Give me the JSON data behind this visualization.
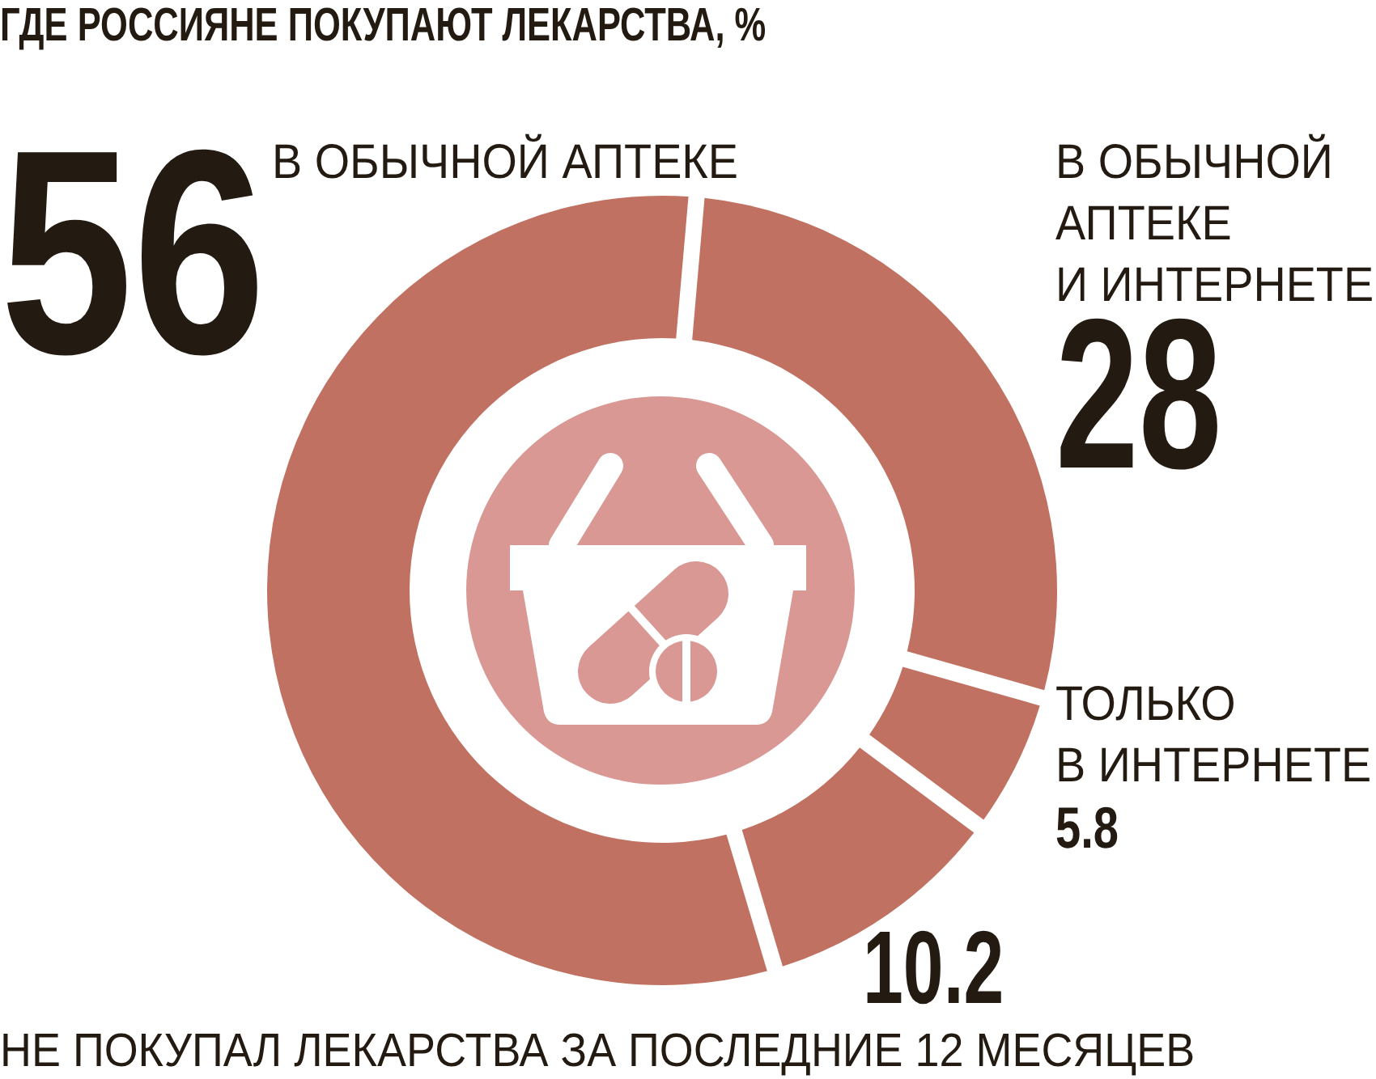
{
  "chart_data": {
    "type": "donut",
    "title": "ГДЕ РОССИЯНЕ ПОКУПАЮТ ЛЕКАРСТВА, %",
    "categories": [
      "В ОБЫЧНОЙ АПТЕКЕ",
      "В ОБЫЧНОЙ АПТЕКЕ И ИНТЕРНЕТЕ",
      "ТОЛЬКО В ИНТЕРНЕТЕ",
      "НЕ ПОКУПАЛ ЛЕКАРСТВА ЗА ПОСЛЕДНИЕ 12 МЕСЯЦЕВ"
    ],
    "values": [
      56,
      28,
      5.8,
      10.2
    ],
    "colors": [
      "#c17161",
      "#c17161",
      "#c17161",
      "#c17161"
    ],
    "data_labels": true
  }
}
